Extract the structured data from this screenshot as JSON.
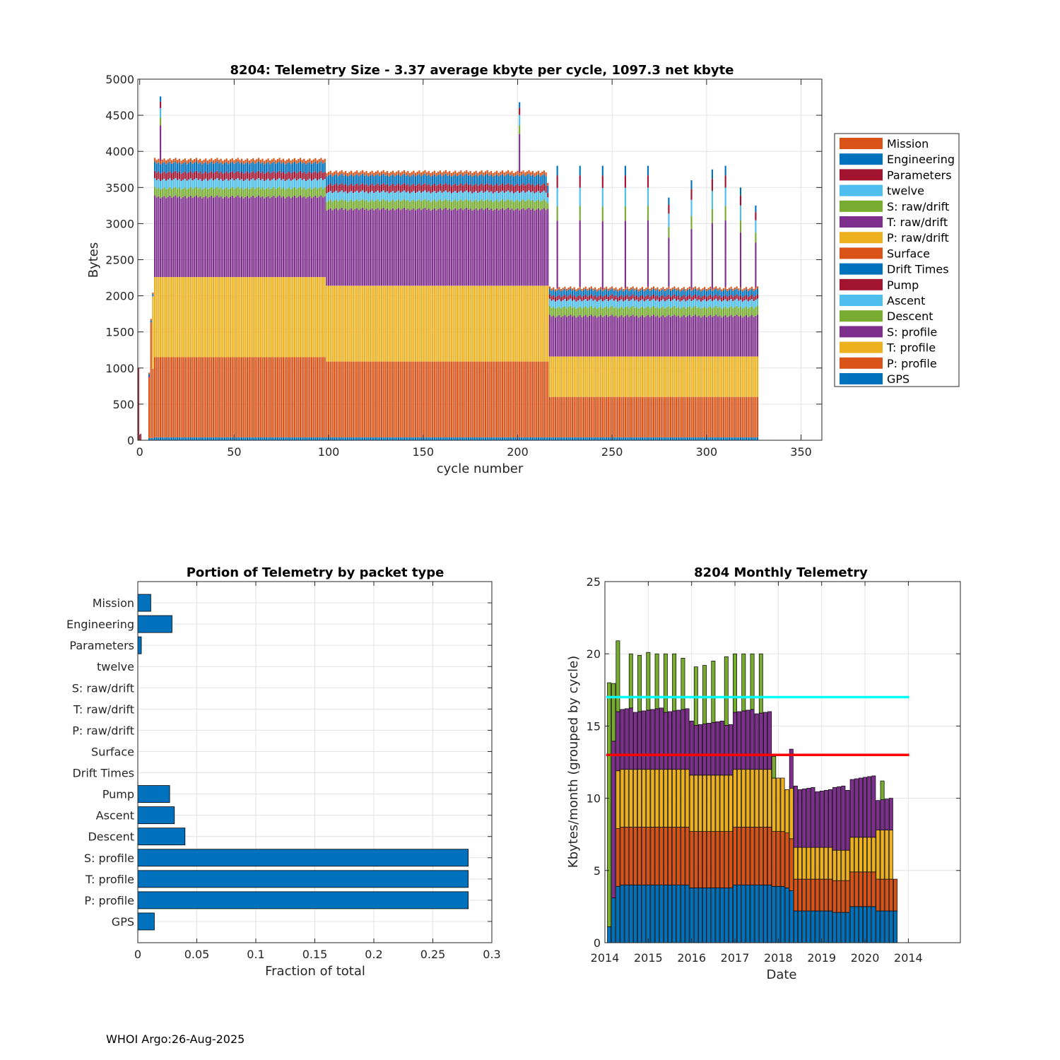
{
  "footer": "WHOI Argo:26-Aug-2025",
  "colors": {
    "blue": "#0072BD",
    "orange": "#D95319",
    "yellow": "#EDB120",
    "purple": "#7E2F8E",
    "green": "#77AC30",
    "cyan": "#4DBEEE",
    "red": "#A2142F",
    "line_cyan": "#00FFFF",
    "line_red": "#FF0000"
  },
  "chart_data": [
    {
      "type": "bar",
      "stacked": true,
      "title": "8204: Telemetry Size - 3.37 average kbyte per cycle, 1097.3 net kbyte",
      "xlabel": "cycle number",
      "ylabel": "Bytes",
      "xlim": [
        -1,
        361
      ],
      "ylim": [
        0,
        5000
      ],
      "xticks": [
        0,
        50,
        100,
        150,
        200,
        250,
        300,
        350
      ],
      "yticks": [
        0,
        500,
        1000,
        1500,
        2000,
        2500,
        3000,
        3500,
        4000,
        4500,
        5000
      ],
      "grid": true,
      "legend_position": "right",
      "legend": [
        "Mission",
        "Engineering",
        "Parameters",
        "twelve",
        "S: raw/drift",
        "T: raw/drift",
        "P: raw/drift",
        "Surface",
        "Drift Times",
        "Pump",
        "Ascent",
        "Descent",
        "S: profile",
        "T: profile",
        "P: profile",
        "GPS"
      ],
      "legend_colors": [
        "#D95319",
        "#0072BD",
        "#A2142F",
        "#4DBEEE",
        "#77AC30",
        "#7E2F8E",
        "#EDB120",
        "#D95319",
        "#0072BD",
        "#A2142F",
        "#4DBEEE",
        "#77AC30",
        "#7E2F8E",
        "#EDB120",
        "#D95319",
        "#0072BD"
      ],
      "stack_order": [
        "GPS",
        "P: profile",
        "T: profile",
        "S: profile",
        "Descent",
        "Ascent",
        "Pump",
        "Engineering",
        "Mission"
      ],
      "segments": [
        {
          "from": 5,
          "to": 5,
          "values": [
            30,
            840,
            0,
            0,
            0,
            0,
            0,
            30,
            20
          ]
        },
        {
          "from": 6,
          "to": 6,
          "values": [
            30,
            1600,
            0,
            0,
            0,
            0,
            0,
            30,
            20
          ]
        },
        {
          "from": 7,
          "to": 7,
          "values": [
            30,
            960,
            1000,
            0,
            0,
            0,
            0,
            30,
            20
          ]
        },
        {
          "from": 8,
          "to": 39,
          "values": [
            40,
            1110,
            1110,
            1110,
            120,
            120,
            100,
            130,
            50
          ]
        },
        {
          "from": 40,
          "to": 98,
          "values": [
            40,
            1110,
            1110,
            1110,
            120,
            120,
            100,
            130,
            50
          ]
        },
        {
          "from": 99,
          "to": 215,
          "values": [
            40,
            1050,
            1050,
            1060,
            120,
            120,
            100,
            130,
            50
          ]
        },
        {
          "from": 216,
          "to": 216,
          "values": [
            40,
            1050,
            1050,
            1060,
            80,
            80,
            60,
            100,
            40
          ]
        },
        {
          "from": 217,
          "to": 273,
          "values": [
            40,
            560,
            560,
            560,
            120,
            100,
            60,
            80,
            30
          ]
        },
        {
          "from": 274,
          "to": 299,
          "values": [
            40,
            560,
            560,
            560,
            120,
            100,
            60,
            80,
            30
          ]
        },
        {
          "from": 300,
          "to": 308,
          "values": [
            40,
            560,
            560,
            560,
            120,
            100,
            60,
            80,
            30
          ]
        },
        {
          "from": 309,
          "to": 327,
          "values": [
            40,
            560,
            560,
            560,
            120,
            100,
            60,
            80,
            30
          ]
        }
      ],
      "spikes": [
        {
          "cycle": 11,
          "total": 4760
        },
        {
          "cycle": 201,
          "total": 4680
        },
        {
          "cycle": 221,
          "total": 3800
        },
        {
          "cycle": 233,
          "total": 3800
        },
        {
          "cycle": 245,
          "total": 3800
        },
        {
          "cycle": 257,
          "total": 3800
        },
        {
          "cycle": 269,
          "total": 3800
        },
        {
          "cycle": 280,
          "total": 3360
        },
        {
          "cycle": 292,
          "total": 3600
        },
        {
          "cycle": 303,
          "total": 3750
        },
        {
          "cycle": 310,
          "total": 3800
        },
        {
          "cycle": 318,
          "total": 3500
        },
        {
          "cycle": 326,
          "total": 3250
        }
      ]
    },
    {
      "type": "bar",
      "orientation": "horizontal",
      "title": "Portion of Telemetry by packet type",
      "xlabel": "Fraction of total",
      "xlim": [
        0,
        0.3
      ],
      "xticks": [
        0,
        0.05,
        0.1,
        0.15,
        0.2,
        0.25,
        0.3
      ],
      "xtick_labels": [
        "0",
        "0.05",
        "0.1",
        "0.15",
        "0.2",
        "0.25",
        "0.3"
      ],
      "grid": true,
      "categories": [
        "Mission",
        "Engineering",
        "Parameters",
        "twelve",
        "S: raw/drift",
        "T: raw/drift",
        "P: raw/drift",
        "Surface",
        "Drift Times",
        "Pump",
        "Ascent",
        "Descent",
        "S: profile",
        "T: profile",
        "P: profile",
        "GPS"
      ],
      "values": [
        0.011,
        0.029,
        0.003,
        0,
        0,
        0,
        0,
        0,
        0,
        0.027,
        0.031,
        0.04,
        0.28,
        0.28,
        0.28,
        0.014
      ]
    },
    {
      "type": "bar",
      "stacked": true,
      "title": "8204 Monthly Telemetry",
      "xlabel": "Date",
      "ylabel": "Kbytes/month (grouped by cycle)",
      "ylim": [
        0,
        25
      ],
      "yticks": [
        0,
        5,
        10,
        15,
        20,
        25
      ],
      "xlim": [
        0,
        82
      ],
      "xtick_positions": [
        0,
        10,
        20,
        30,
        40,
        50,
        60,
        70
      ],
      "xtick_labels": [
        "2014",
        "2015",
        "2016",
        "2017",
        "2018",
        "2019",
        "2020",
        "2014"
      ],
      "grid": true,
      "stack_order": [
        "blue",
        "orange",
        "yellow",
        "purple",
        "green"
      ],
      "bars": [
        {
          "from": 1,
          "to": 1,
          "values": [
            1.1,
            0,
            0,
            0,
            0
          ]
        },
        {
          "from": 2,
          "to": 2,
          "values": [
            3.1,
            0,
            0,
            10.9,
            4
          ]
        },
        {
          "from": 3,
          "to": 3,
          "values": [
            3.9,
            4,
            4,
            4.1,
            4.9
          ]
        },
        {
          "from": 4,
          "to": 19,
          "values": [
            4,
            4,
            4,
            4.1,
            0
          ]
        },
        {
          "from": 20,
          "to": 29,
          "values": [
            3.8,
            3.9,
            3.9,
            3.6,
            0
          ]
        },
        {
          "from": 30,
          "to": 38,
          "values": [
            4,
            4,
            4,
            4,
            0
          ]
        },
        {
          "from": 39,
          "to": 41,
          "values": [
            3.9,
            3.8,
            3.7,
            0,
            0
          ]
        },
        {
          "from": 42,
          "to": 42,
          "values": [
            3.8,
            3.8,
            3.0,
            0,
            0
          ]
        },
        {
          "from": 43,
          "to": 43,
          "values": [
            3.6,
            3.6,
            3.5,
            2.8,
            0
          ]
        },
        {
          "from": 44,
          "to": 44,
          "values": [
            2.2,
            2.2,
            2.2,
            4.3,
            0
          ]
        },
        {
          "from": 45,
          "to": 52,
          "values": [
            2.2,
            2.2,
            2.2,
            4.0,
            0
          ]
        },
        {
          "from": 53,
          "to": 56,
          "values": [
            2.1,
            2.2,
            2.1,
            4.3,
            0
          ]
        },
        {
          "from": 57,
          "to": 62,
          "values": [
            2.5,
            2.4,
            2.4,
            4.1,
            0
          ]
        },
        {
          "from": 63,
          "to": 66,
          "values": [
            2.2,
            2.2,
            3.4,
            2.2,
            0
          ]
        },
        {
          "from": 67,
          "to": 67,
          "values": [
            2.2,
            2.2,
            0,
            0,
            0
          ]
        }
      ],
      "spikes": [
        {
          "bar": 1,
          "total": 18.0
        },
        {
          "bar": 3,
          "total": 20.9
        },
        {
          "bar": 6,
          "total": 20.0
        },
        {
          "bar": 8,
          "total": 19.9
        },
        {
          "bar": 10,
          "total": 20.1
        },
        {
          "bar": 12,
          "total": 20.0
        },
        {
          "bar": 14,
          "total": 20.0
        },
        {
          "bar": 16,
          "total": 20.0
        },
        {
          "bar": 18,
          "total": 19.7
        },
        {
          "bar": 21,
          "total": 19.1
        },
        {
          "bar": 23,
          "total": 19.2
        },
        {
          "bar": 25,
          "total": 19.5
        },
        {
          "bar": 28,
          "total": 19.8
        },
        {
          "bar": 30,
          "total": 20.0
        },
        {
          "bar": 32,
          "total": 20.0
        },
        {
          "bar": 34,
          "total": 20.0
        },
        {
          "bar": 36,
          "total": 20.0
        },
        {
          "bar": 39,
          "total": 12.9
        },
        {
          "bar": 43,
          "total": 13.4
        },
        {
          "bar": 64,
          "total": 11.2
        }
      ],
      "hlines": [
        {
          "y": 17,
          "color": "#00FFFF"
        },
        {
          "y": 13,
          "color": "#FF0000"
        }
      ]
    }
  ]
}
